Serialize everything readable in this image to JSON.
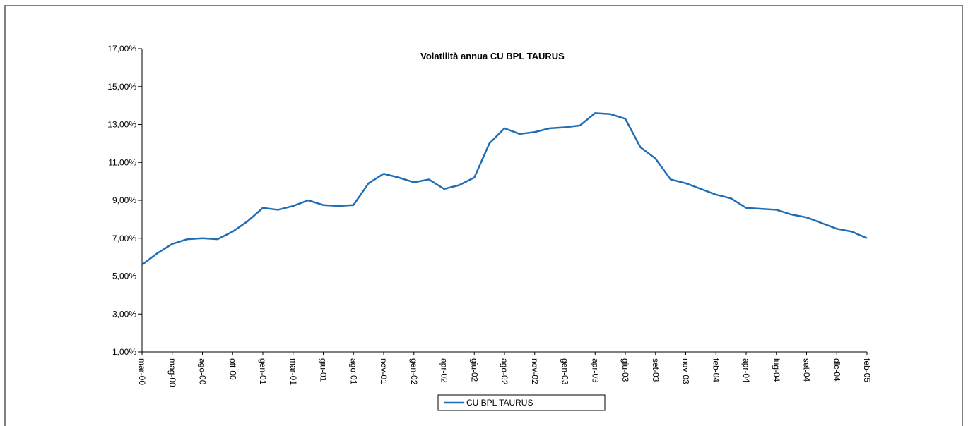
{
  "chart_data": {
    "type": "line",
    "title": "Volatilità annua CU BPL TAURUS",
    "categories": [
      "mar-00",
      null,
      "mag-00",
      null,
      "ago-00",
      null,
      "ott-00",
      null,
      "gen-01",
      null,
      "mar-01",
      null,
      "giu-01",
      null,
      "ago-01",
      null,
      "nov-01",
      null,
      "gen-02",
      null,
      "apr-02",
      null,
      "giu-02",
      null,
      "ago-02",
      null,
      "nov-02",
      null,
      "gen-03",
      null,
      "apr-03",
      null,
      "giu-03",
      null,
      "set-03",
      null,
      "nov-03",
      null,
      "feb-04",
      null,
      "apr-04",
      null,
      "lug-04",
      null,
      "set-04",
      null,
      "dic-04",
      null,
      "feb-05"
    ],
    "series": [
      {
        "name": "CU BPL TAURUS",
        "color": "#1f6db3",
        "values": [
          5.6,
          6.2,
          6.7,
          6.95,
          7.0,
          6.95,
          7.35,
          7.9,
          8.6,
          8.5,
          8.7,
          9.0,
          8.75,
          8.7,
          8.75,
          9.9,
          10.4,
          10.2,
          9.95,
          10.1,
          9.6,
          9.8,
          10.2,
          12.0,
          12.8,
          12.5,
          12.6,
          12.8,
          12.85,
          12.95,
          13.6,
          13.55,
          13.3,
          11.8,
          11.2,
          10.1,
          9.9,
          9.6,
          9.3,
          9.1,
          8.6,
          8.55,
          8.5,
          8.25,
          8.1,
          7.8,
          7.5,
          7.35,
          7.0
        ]
      }
    ],
    "ylim": [
      1,
      17
    ],
    "yticks": [
      {
        "value": 1,
        "label": "1,00%"
      },
      {
        "value": 3,
        "label": "3,00%"
      },
      {
        "value": 5,
        "label": "5,00%"
      },
      {
        "value": 7,
        "label": "7,00%"
      },
      {
        "value": 9,
        "label": "9,00%"
      },
      {
        "value": 11,
        "label": "11,00%"
      },
      {
        "value": 13,
        "label": "13,00%"
      },
      {
        "value": 15,
        "label": "15,00%"
      },
      {
        "value": 17,
        "label": "17,00%"
      }
    ],
    "legend": "bottom"
  }
}
